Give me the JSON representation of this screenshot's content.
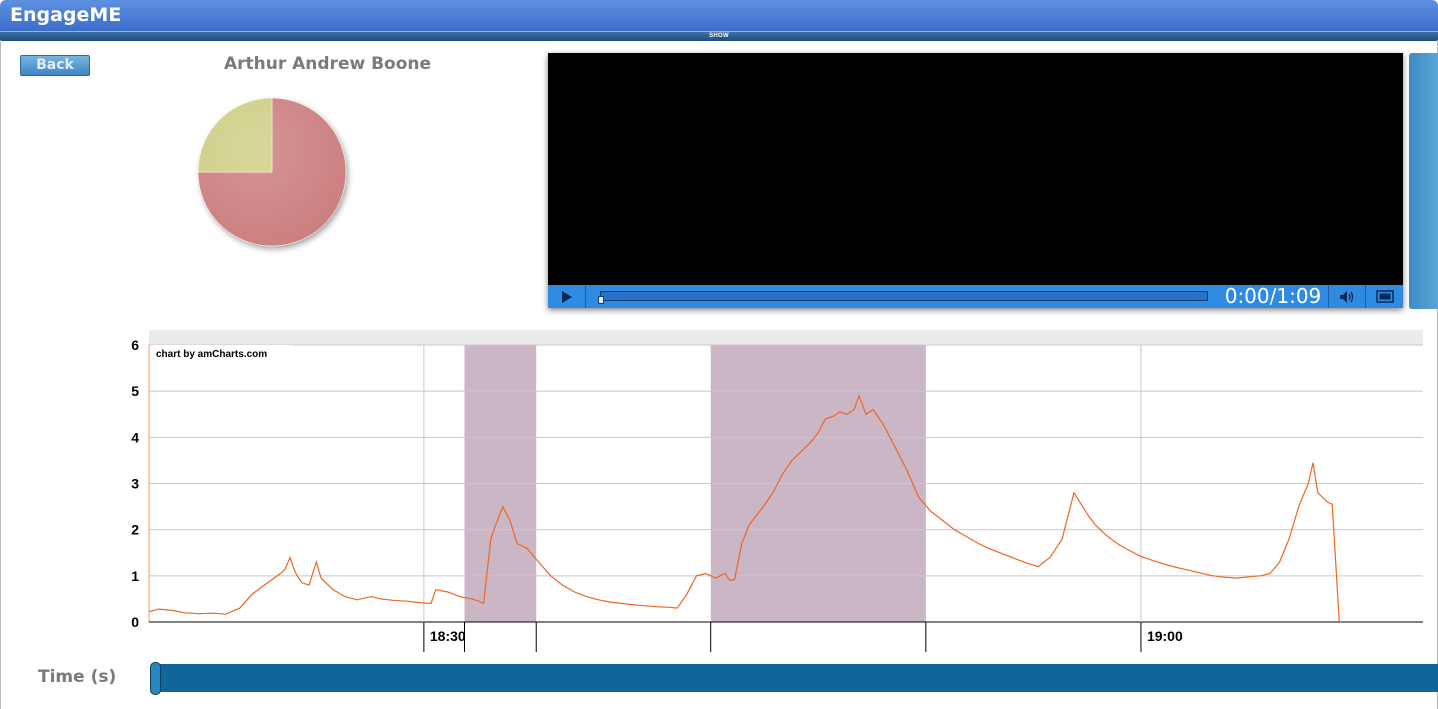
{
  "app": {
    "title": "EngageME",
    "show_label": "SHOW"
  },
  "toolbar": {
    "back_label": "Back"
  },
  "person": {
    "name": "Arthur Andrew Boone"
  },
  "pie": {
    "slices": [
      {
        "value": 75,
        "color": "#cc7e7e"
      },
      {
        "value": 25,
        "color": "#cece84"
      }
    ]
  },
  "player": {
    "time_display": "0:00/1:09",
    "progress": 0
  },
  "time_axis": {
    "label": "Time (s)"
  },
  "chart_data": {
    "type": "line",
    "credit": "chart by amCharts.com",
    "y_ticks": [
      "0",
      "1",
      "2",
      "3",
      "4",
      "5",
      "6"
    ],
    "ylim": [
      0,
      6
    ],
    "x_tick_labels": [
      {
        "label": "18:30",
        "minute": 30
      },
      {
        "label": "19:00",
        "minute": 60
      }
    ],
    "xlim_minutes": [
      18.5,
      71.8
    ],
    "color": "#ee6622",
    "highlight_bands_minutes": [
      [
        31.7,
        34.7
      ],
      [
        42.0,
        51.0
      ]
    ],
    "series": [
      {
        "x": [
          18.5,
          18.9,
          19.5,
          20.0,
          20.6,
          21.2,
          21.7,
          22.3,
          22.8,
          23.2,
          23.6,
          24.0,
          24.2,
          24.4,
          24.6,
          24.7,
          24.9,
          25.2,
          25.5,
          25.7,
          25.9,
          26.2,
          26.7,
          27.2,
          27.8,
          28.2,
          28.7,
          29.3,
          29.8,
          30.3,
          30.5,
          31.0,
          31.5,
          32.0,
          32.3,
          32.5,
          32.8,
          33.0,
          33.3,
          33.6,
          33.9,
          34.3,
          34.8,
          35.3,
          35.8,
          36.3,
          36.8,
          37.3,
          37.8,
          38.3,
          38.8,
          39.3,
          39.8,
          40.2,
          40.6,
          41.0,
          41.4,
          41.8,
          42.2,
          42.6,
          42.8,
          43.0,
          43.3,
          43.6,
          43.9,
          44.2,
          44.6,
          45.0,
          45.4,
          45.8,
          46.2,
          46.5,
          46.8,
          47.1,
          47.4,
          47.7,
          48.0,
          48.2,
          48.5,
          48.8,
          49.2,
          49.7,
          50.2,
          50.7,
          51.2,
          51.7,
          52.2,
          52.7,
          53.2,
          53.7,
          54.2,
          54.7,
          55.2,
          55.7,
          56.2,
          56.7,
          57.2,
          57.5,
          57.8,
          58.1,
          58.5,
          59.0,
          59.5,
          60.0,
          60.5,
          61.0,
          61.5,
          62.0,
          62.5,
          63.0,
          63.5,
          64.0,
          64.5,
          65.0,
          65.4,
          65.8,
          66.2,
          66.6,
          67.0,
          67.2,
          67.4,
          67.6,
          67.8,
          68.0,
          68.3
        ],
        "y": [
          0.22,
          0.28,
          0.25,
          0.2,
          0.18,
          0.19,
          0.17,
          0.3,
          0.6,
          0.75,
          0.9,
          1.05,
          1.15,
          1.4,
          1.1,
          1.0,
          0.85,
          0.8,
          1.3,
          0.95,
          0.85,
          0.7,
          0.55,
          0.48,
          0.55,
          0.5,
          0.47,
          0.45,
          0.42,
          0.4,
          0.7,
          0.65,
          0.55,
          0.5,
          0.45,
          0.4,
          1.8,
          2.1,
          2.5,
          2.2,
          1.7,
          1.6,
          1.3,
          1.0,
          0.8,
          0.65,
          0.55,
          0.48,
          0.43,
          0.4,
          0.37,
          0.35,
          0.33,
          0.32,
          0.3,
          0.6,
          1.0,
          1.05,
          0.95,
          1.05,
          0.9,
          0.92,
          1.7,
          2.1,
          2.3,
          2.5,
          2.8,
          3.2,
          3.5,
          3.7,
          3.9,
          4.1,
          4.4,
          4.45,
          4.55,
          4.5,
          4.6,
          4.9,
          4.5,
          4.6,
          4.3,
          3.8,
          3.3,
          2.7,
          2.4,
          2.2,
          2.0,
          1.85,
          1.7,
          1.58,
          1.48,
          1.38,
          1.28,
          1.2,
          1.4,
          1.8,
          2.8,
          2.55,
          2.3,
          2.1,
          1.9,
          1.7,
          1.55,
          1.42,
          1.33,
          1.25,
          1.18,
          1.12,
          1.06,
          1.0,
          0.97,
          0.95,
          0.98,
          1.0,
          1.05,
          1.3,
          1.8,
          2.5,
          3.0,
          3.45,
          2.8,
          2.7,
          2.6,
          2.55,
          0.0
        ]
      }
    ]
  }
}
